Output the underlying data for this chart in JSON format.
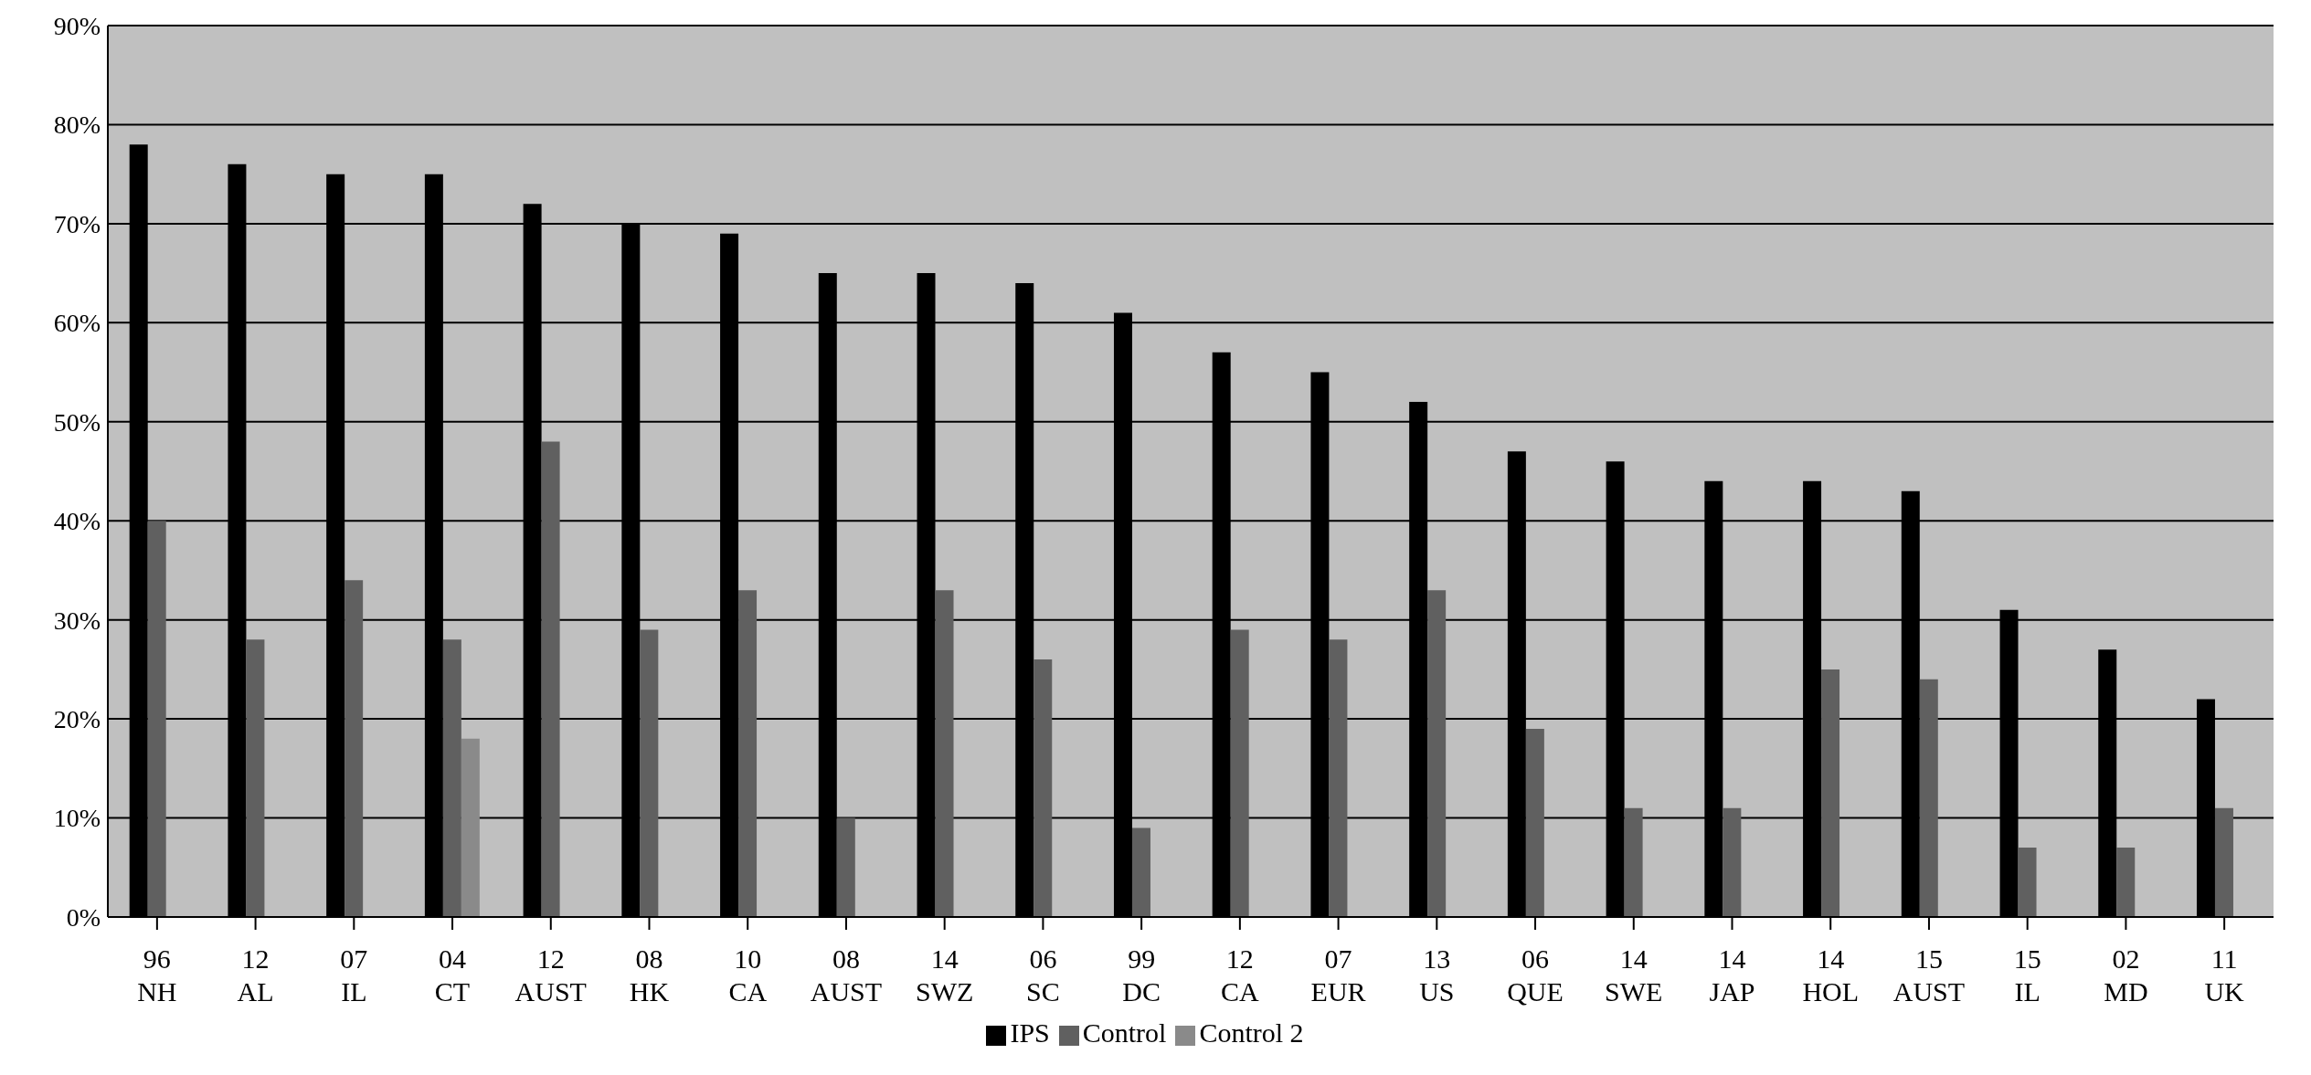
{
  "chart_data": {
    "type": "bar",
    "categories": [
      "96\nNH",
      "12\nAL",
      "07\nIL",
      "04\nCT",
      "12\nAUST",
      "08\nHK",
      "10\nCA",
      "08\nAUST",
      "14\nSWZ",
      "06\nSC",
      "99\nDC",
      "12\nCA",
      "07\nEUR",
      "13\nUS",
      "06\nQUE",
      "14\nSWE",
      "14\nJAP",
      "14\nHOL",
      "15\nAUST",
      "15\nIL",
      "02\nMD",
      "11\nUK"
    ],
    "series": [
      {
        "name": "IPS",
        "color": "#000000",
        "values": [
          78,
          76,
          75,
          75,
          72,
          70,
          69,
          65,
          65,
          64,
          61,
          57,
          55,
          52,
          47,
          46,
          44,
          44,
          43,
          31,
          27,
          22
        ]
      },
      {
        "name": "Control",
        "color": "#606060",
        "values": [
          40,
          28,
          34,
          28,
          48,
          29,
          33,
          10,
          33,
          26,
          9,
          29,
          28,
          33,
          19,
          11,
          11,
          25,
          24,
          7,
          7,
          11
        ]
      },
      {
        "name": "Control 2",
        "color": "#8a8a8a",
        "values": [
          null,
          null,
          null,
          18,
          null,
          null,
          null,
          null,
          null,
          null,
          null,
          null,
          null,
          null,
          null,
          null,
          null,
          null,
          null,
          null,
          null,
          null
        ]
      }
    ],
    "ylim": [
      0,
      90
    ],
    "yticks": [
      {
        "value": 0,
        "label": "0%"
      },
      {
        "value": 10,
        "label": "10%"
      },
      {
        "value": 20,
        "label": "20%"
      },
      {
        "value": 30,
        "label": "30%"
      },
      {
        "value": 40,
        "label": "40%"
      },
      {
        "value": 50,
        "label": "50%"
      },
      {
        "value": 60,
        "label": "60%"
      },
      {
        "value": 70,
        "label": "70%"
      },
      {
        "value": 80,
        "label": "80%"
      },
      {
        "value": 90,
        "label": "90%"
      }
    ],
    "grid": "y",
    "legend": "bottom"
  }
}
